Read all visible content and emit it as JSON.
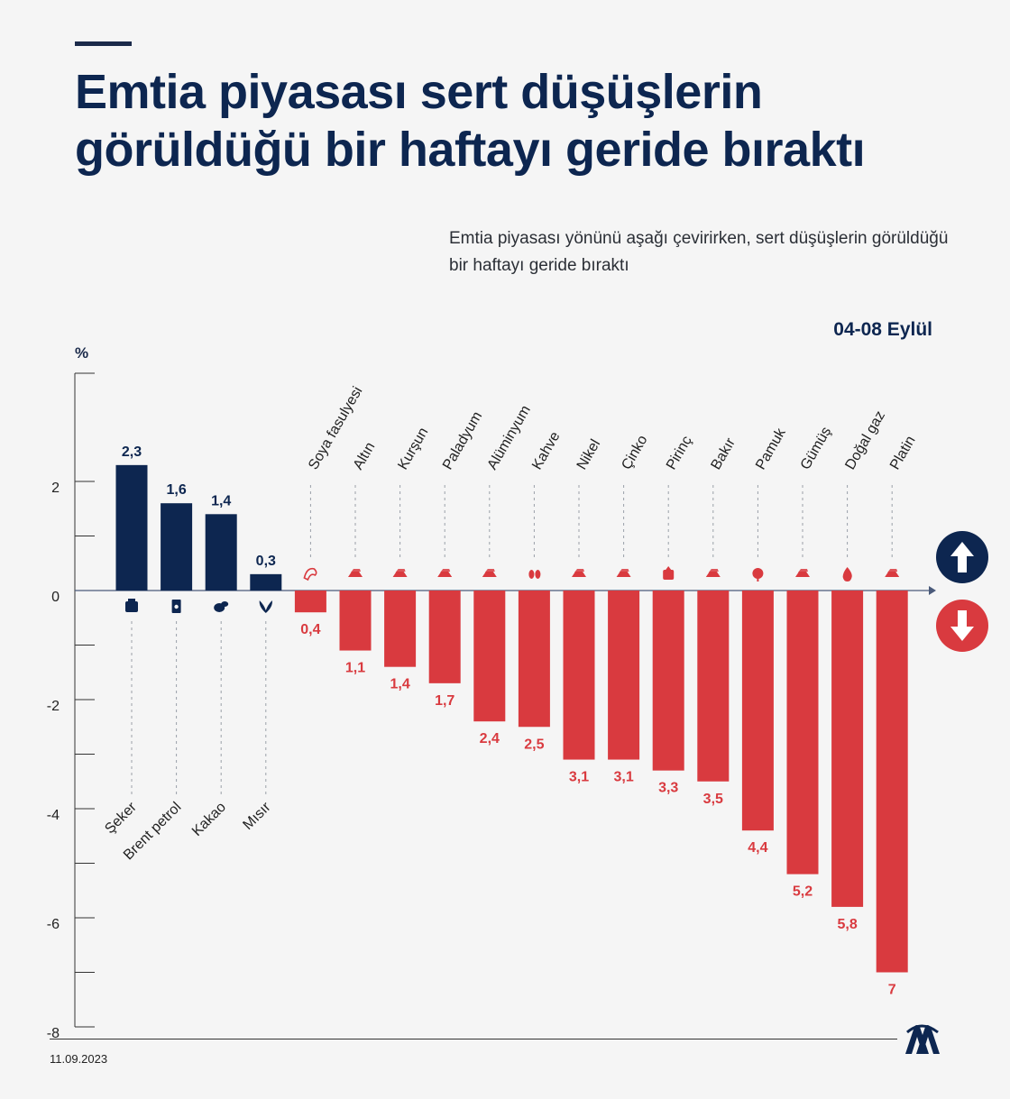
{
  "header": {
    "title": "Emtia piyasası sert düşüşlerin görüldüğü bir haftayı geride bıraktı",
    "subtitle": "Emtia piyasası yönünü aşağı çevirirken, sert düşüşlerin görüldüğü bir haftayı geride bıraktı",
    "date_range": "04-08 Eylül"
  },
  "footer": {
    "date": "11.09.2023",
    "logo": "aa-logo"
  },
  "indicators": {
    "up": "arrow-up-icon",
    "down": "arrow-down-icon"
  },
  "chart_data": {
    "type": "bar",
    "ylabel": "%",
    "ylim": [
      -8,
      3
    ],
    "yticks": [
      2,
      0,
      -2,
      -4,
      -6,
      -8
    ],
    "grid": false,
    "colors": {
      "positive": "#0d2650",
      "negative": "#d93a3f"
    },
    "categories": [
      "Şeker",
      "Brent petrol",
      "Kakao",
      "Mısır",
      "Soya fasulyesi",
      "Altın",
      "Kurşun",
      "Paladyum",
      "Alüminyum",
      "Kahve",
      "Nikel",
      "Çinko",
      "Pirinç",
      "Bakır",
      "Pamuk",
      "Gümüş",
      "Doğal gaz",
      "Platin"
    ],
    "values": [
      2.3,
      1.6,
      1.4,
      0.3,
      -0.4,
      -1.1,
      -1.4,
      -1.7,
      -2.4,
      -2.5,
      -3.1,
      -3.1,
      -3.3,
      -3.5,
      -4.4,
      -5.2,
      -5.8,
      -7
    ],
    "value_labels": [
      "2,3",
      "1,6",
      "1,4",
      "0,3",
      "0,4",
      "1,1",
      "1,4",
      "1,7",
      "2,4",
      "2,5",
      "3,1",
      "3,1",
      "3,3",
      "3,5",
      "4,4",
      "5,2",
      "5,8",
      "7"
    ],
    "icons": [
      "sugar-icon",
      "oil-barrel-icon",
      "cocoa-icon",
      "corn-icon",
      "soybean-icon",
      "gold-bar-icon",
      "metal-bar-icon",
      "metal-bar-icon",
      "metal-bar-icon",
      "coffee-bean-icon",
      "metal-bar-icon",
      "metal-bar-icon",
      "rice-icon",
      "metal-bar-icon",
      "cotton-icon",
      "metal-bar-icon",
      "flame-icon",
      "metal-bar-icon"
    ]
  }
}
